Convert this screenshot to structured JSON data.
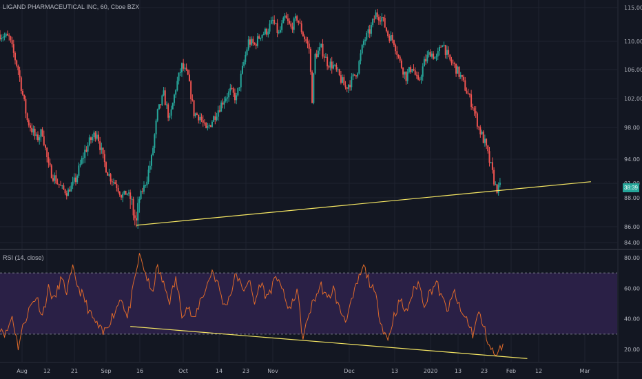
{
  "header": {
    "title": "LIGAND PHARMACEUTICAL INC, 60, Cboe BZX",
    "rsi_title": "RSI (14, close)",
    "last_price_tag": "38:39"
  },
  "colors": {
    "background": "#131722",
    "up": "#26a69a",
    "down": "#ef5350",
    "trendline": "#f5e663",
    "rsi_line": "#e06a2a",
    "rsi_band": "#2a2046",
    "grid": "#1f2330",
    "axis_text": "#b2b5be"
  },
  "chart_data": [
    {
      "type": "candlestick",
      "title": "LIGAND PHARMACEUTICAL INC, 60, Cboe BZX",
      "ylim": [
        83,
        117
      ],
      "y_ticks": [
        "115.00",
        "110.00",
        "106.00",
        "102.00",
        "98.00",
        "94.00",
        "91.00",
        "88.00",
        "86.00",
        "84.00"
      ],
      "x_ticks": [
        "Aug",
        "12",
        "21",
        "Sep",
        "16",
        "Oct",
        "14",
        "23",
        "Nov",
        "Dec",
        "13",
        "2020",
        "13",
        "23",
        "Feb",
        "12",
        "Mar"
      ],
      "close_path": [
        [
          0,
          111.0
        ],
        [
          3,
          110.5
        ],
        [
          6,
          106.0
        ],
        [
          9,
          99.0
        ],
        [
          12,
          96.5
        ],
        [
          14,
          97.5
        ],
        [
          16,
          93.0
        ],
        [
          19,
          91.0
        ],
        [
          22,
          89.0
        ],
        [
          25,
          91.5
        ],
        [
          28,
          95.0
        ],
        [
          30,
          96.5
        ],
        [
          32,
          97.5
        ],
        [
          34,
          94.0
        ],
        [
          36,
          92.0
        ],
        [
          38,
          91.0
        ],
        [
          40,
          88.5
        ],
        [
          42,
          89.0
        ],
        [
          44,
          87.0
        ],
        [
          45,
          86.2
        ],
        [
          46,
          88.0
        ],
        [
          48,
          91.0
        ],
        [
          50,
          94.0
        ],
        [
          52,
          100.0
        ],
        [
          54,
          102.5
        ],
        [
          56,
          99.0
        ],
        [
          58,
          103.5
        ],
        [
          60,
          106.5
        ],
        [
          62,
          105.0
        ],
        [
          64,
          100.0
        ],
        [
          66,
          99.5
        ],
        [
          68,
          97.5
        ],
        [
          70,
          99.0
        ],
        [
          72,
          100.5
        ],
        [
          74,
          102.0
        ],
        [
          76,
          103.0
        ],
        [
          78,
          102.0
        ],
        [
          80,
          106.0
        ],
        [
          82,
          110.0
        ],
        [
          84,
          109.5
        ],
        [
          86,
          111.0
        ],
        [
          88,
          111.5
        ],
        [
          90,
          113.0
        ],
        [
          92,
          111.0
        ],
        [
          94,
          113.5
        ],
        [
          96,
          112.0
        ],
        [
          98,
          113.5
        ],
        [
          100,
          111.0
        ],
        [
          102,
          109.0
        ],
        [
          103,
          102.0
        ],
        [
          104,
          108.0
        ],
        [
          106,
          109.0
        ],
        [
          108,
          107.0
        ],
        [
          110,
          106.5
        ],
        [
          112,
          105.0
        ],
        [
          114,
          103.5
        ],
        [
          116,
          104.5
        ],
        [
          118,
          106.0
        ],
        [
          120,
          110.0
        ],
        [
          122,
          111.5
        ],
        [
          124,
          114.0
        ],
        [
          126,
          113.5
        ],
        [
          128,
          111.0
        ],
        [
          130,
          110.0
        ],
        [
          132,
          107.0
        ],
        [
          134,
          105.0
        ],
        [
          136,
          106.5
        ],
        [
          138,
          104.0
        ],
        [
          140,
          107.0
        ],
        [
          142,
          108.5
        ],
        [
          144,
          107.5
        ],
        [
          146,
          110.0
        ],
        [
          148,
          107.5
        ],
        [
          150,
          106.5
        ],
        [
          152,
          105.0
        ],
        [
          154,
          103.0
        ],
        [
          156,
          101.0
        ],
        [
          158,
          98.0
        ],
        [
          160,
          96.0
        ],
        [
          162,
          93.0
        ],
        [
          164,
          89.6
        ],
        [
          165,
          90.5
        ]
      ],
      "trendline": [
        [
          45,
          86.1
        ],
        [
          195,
          91.2
        ]
      ],
      "last_value": "38:39"
    },
    {
      "type": "line",
      "title": "RSI (14, close)",
      "ylim": [
        13,
        84
      ],
      "y_ticks": [
        "80.00",
        "60.00",
        "40.00",
        "20.00"
      ],
      "overbought": 70,
      "oversold": 30,
      "rsi_path": [
        [
          0,
          35
        ],
        [
          2,
          30
        ],
        [
          4,
          42
        ],
        [
          6,
          22
        ],
        [
          8,
          38
        ],
        [
          10,
          48
        ],
        [
          12,
          55
        ],
        [
          14,
          42
        ],
        [
          16,
          60
        ],
        [
          18,
          52
        ],
        [
          20,
          66
        ],
        [
          22,
          58
        ],
        [
          24,
          72
        ],
        [
          26,
          60
        ],
        [
          28,
          52
        ],
        [
          30,
          42
        ],
        [
          32,
          36
        ],
        [
          34,
          30
        ],
        [
          36,
          38
        ],
        [
          38,
          45
        ],
        [
          40,
          55
        ],
        [
          42,
          40
        ],
        [
          44,
          60
        ],
        [
          46,
          82
        ],
        [
          48,
          70
        ],
        [
          50,
          56
        ],
        [
          52,
          74
        ],
        [
          54,
          62
        ],
        [
          56,
          52
        ],
        [
          58,
          66
        ],
        [
          60,
          44
        ],
        [
          62,
          48
        ],
        [
          64,
          38
        ],
        [
          66,
          52
        ],
        [
          68,
          60
        ],
        [
          70,
          72
        ],
        [
          72,
          62
        ],
        [
          74,
          48
        ],
        [
          76,
          56
        ],
        [
          78,
          70
        ],
        [
          80,
          58
        ],
        [
          82,
          66
        ],
        [
          84,
          50
        ],
        [
          86,
          64
        ],
        [
          88,
          54
        ],
        [
          90,
          62
        ],
        [
          92,
          68
        ],
        [
          94,
          52
        ],
        [
          96,
          46
        ],
        [
          98,
          60
        ],
        [
          100,
          26
        ],
        [
          102,
          44
        ],
        [
          104,
          54
        ],
        [
          106,
          62
        ],
        [
          108,
          52
        ],
        [
          110,
          60
        ],
        [
          112,
          46
        ],
        [
          114,
          40
        ],
        [
          116,
          50
        ],
        [
          118,
          64
        ],
        [
          120,
          74
        ],
        [
          122,
          64
        ],
        [
          124,
          54
        ],
        [
          126,
          36
        ],
        [
          128,
          26
        ],
        [
          130,
          42
        ],
        [
          132,
          52
        ],
        [
          134,
          44
        ],
        [
          136,
          56
        ],
        [
          138,
          64
        ],
        [
          140,
          50
        ],
        [
          142,
          58
        ],
        [
          144,
          64
        ],
        [
          146,
          52
        ],
        [
          148,
          46
        ],
        [
          150,
          58
        ],
        [
          152,
          44
        ],
        [
          154,
          40
        ],
        [
          156,
          30
        ],
        [
          158,
          44
        ],
        [
          160,
          32
        ],
        [
          162,
          20
        ],
        [
          164,
          15
        ],
        [
          166,
          25
        ]
      ],
      "trendline": [
        [
          43,
          35
        ],
        [
          174,
          14
        ]
      ]
    }
  ]
}
